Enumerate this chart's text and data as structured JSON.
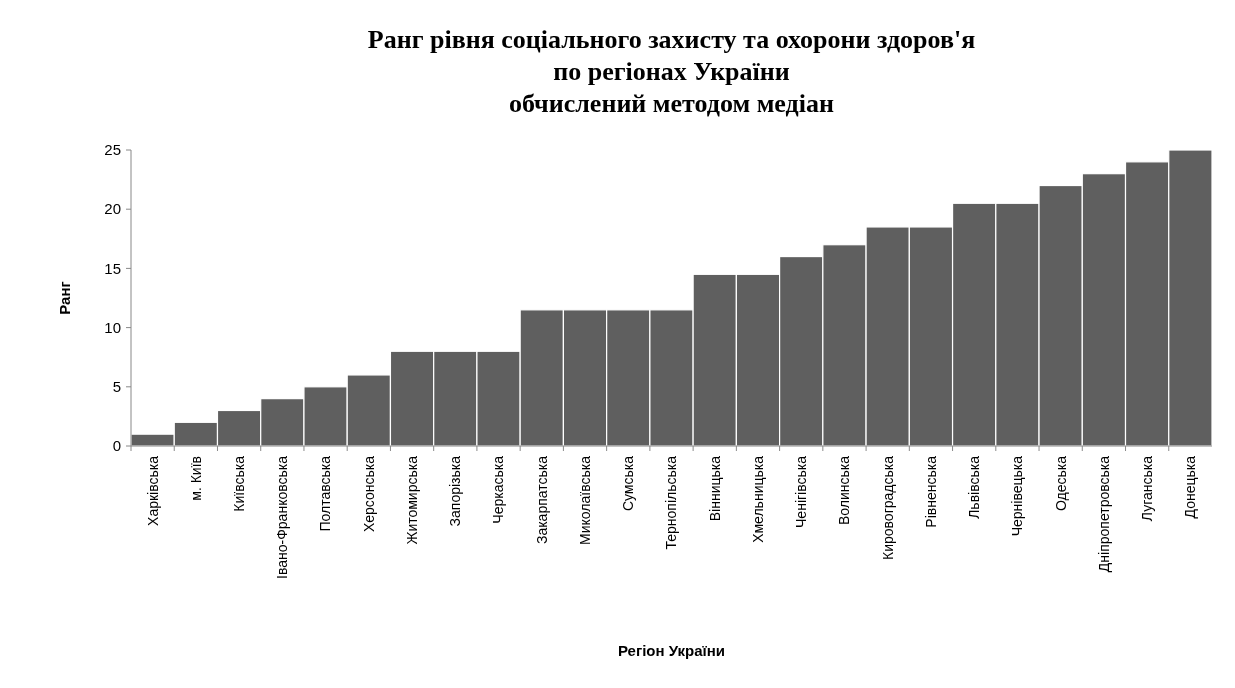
{
  "chart_data": {
    "type": "bar",
    "title": "Ранг рівня соціального захисту та охорони здоров'я\nпо регіонах України\nобчислений методом медіан",
    "xlabel": "Регіон України",
    "ylabel": "Ранг",
    "categories": [
      "Харківська",
      "м. Київ",
      "Київська",
      "Івано-Франковська",
      "Полтавська",
      "Херсонська",
      "Житомирська",
      "Запорізька",
      "Черкаська",
      "Закарпатська",
      "Миколаївська",
      "Сумська",
      "Тернопільська",
      "Вінницька",
      "Хмельницька",
      "Ченігівська",
      "Волинська",
      "Кировоградська",
      "Рівненська",
      "Львівська",
      "Чернівецька",
      "Одеська",
      "Дніпропетровська",
      "Луганська",
      "Донецька"
    ],
    "values": [
      1,
      2,
      3,
      4,
      5,
      6,
      8,
      8,
      8,
      11.5,
      11.5,
      11.5,
      11.5,
      14.5,
      14.5,
      16,
      17,
      18.5,
      18.5,
      20.5,
      20.5,
      22,
      23,
      24,
      25
    ],
    "color": "#5f5f5f",
    "ylim": [
      0,
      25
    ],
    "yticks": [
      0,
      5,
      10,
      15,
      20,
      25
    ],
    "grid": false
  }
}
